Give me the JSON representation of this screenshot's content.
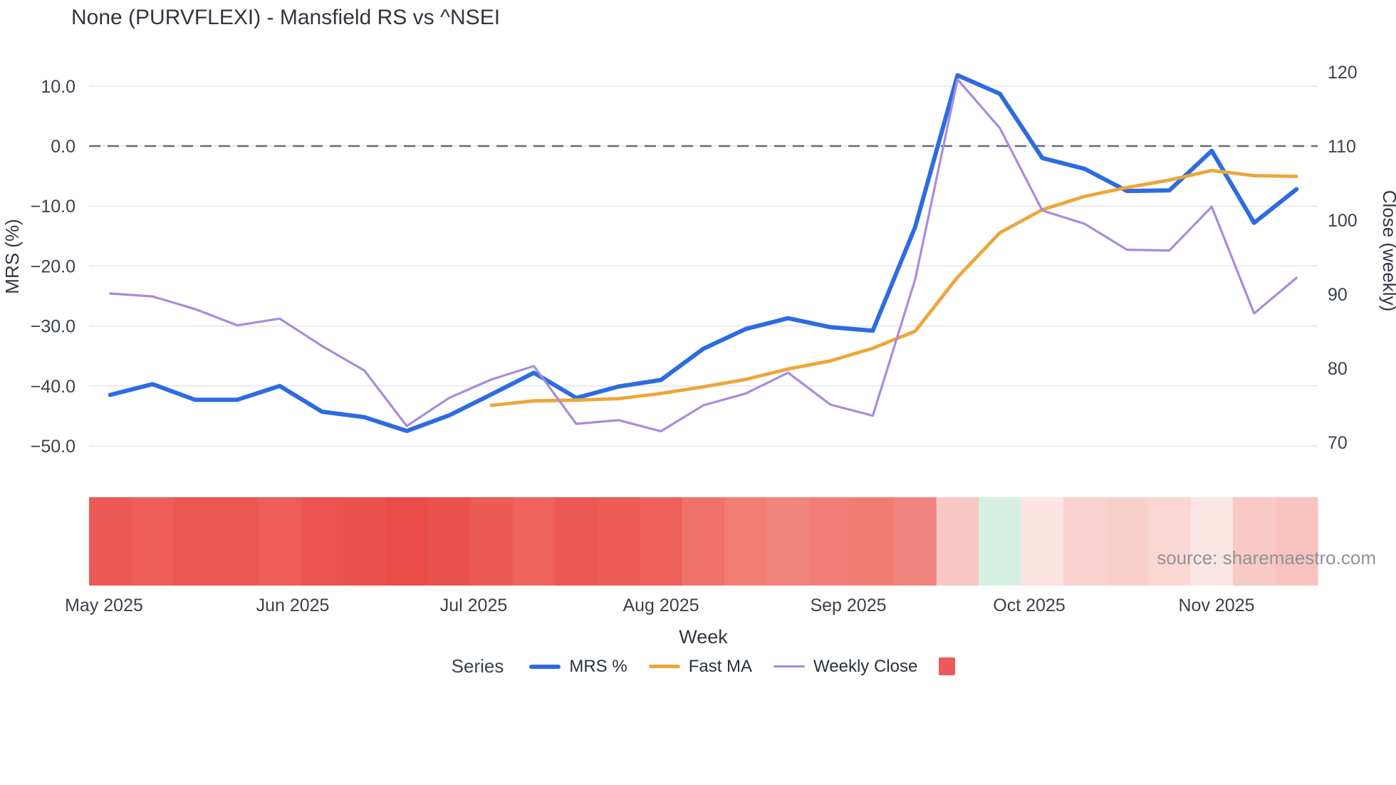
{
  "title": "None (PURVFLEXI) - Mansfield RS vs ^NSEI",
  "source_note": "source: sharemaestro.com",
  "colors": {
    "mrs_line": "#2d6ce0",
    "fast_ma_line": "#eda63b",
    "weekly_close_line": "#a98bdc",
    "zero_dash_line": "#646b76",
    "gridline": "#e9ebf0",
    "tick_text": "#3b414b",
    "title_text": "#31363f",
    "source_text": "#8e939b",
    "legend_band_swatch": "#ec5a5c"
  },
  "legend": {
    "label": "Series",
    "items": [
      {
        "label": "MRS %",
        "type": "line",
        "color": "#2d6ce0"
      },
      {
        "label": "Fast MA",
        "type": "line",
        "color": "#eda63b"
      },
      {
        "label": "Weekly Close",
        "type": "line",
        "color": "#a98bdc"
      },
      {
        "label": "",
        "type": "square",
        "color": "#ec5a5c"
      }
    ]
  },
  "chart_data": {
    "type": "line",
    "title": "None (PURVFLEXI) - Mansfield RS vs ^NSEI",
    "xlabel": "Week",
    "ylabel_left": "MRS (%)",
    "ylabel_right": "Close (weekly)",
    "x_tick_labels": [
      "May 2025",
      "Jun 2025",
      "Jul 2025",
      "Aug 2025",
      "Sep 2025",
      "Oct 2025",
      "Nov 2025"
    ],
    "left_axis_ticks": [
      "10.0",
      "0.0",
      "−10.0",
      "−20.0",
      "−30.0",
      "−40.0",
      "−50.0"
    ],
    "left_axis_tick_values": [
      10,
      0,
      -10,
      -20,
      -30,
      -40,
      -50
    ],
    "right_axis_ticks": [
      "120",
      "110",
      "100",
      "90",
      "80",
      "70"
    ],
    "right_axis_tick_values": [
      120,
      110,
      100,
      90,
      80,
      70
    ],
    "ylim_left": [
      -54,
      15
    ],
    "ylim_right": [
      66,
      122.5
    ],
    "grid": "horizontal-only",
    "zero_reference_line": 0,
    "legend_position": "bottom-center",
    "weeks": [
      "2025-05-02",
      "2025-05-09",
      "2025-05-16",
      "2025-05-23",
      "2025-05-30",
      "2025-06-06",
      "2025-06-13",
      "2025-06-20",
      "2025-06-27",
      "2025-07-04",
      "2025-07-11",
      "2025-07-18",
      "2025-07-25",
      "2025-08-01",
      "2025-08-08",
      "2025-08-15",
      "2025-08-22",
      "2025-08-29",
      "2025-09-05",
      "2025-09-12",
      "2025-09-19",
      "2025-09-26",
      "2025-10-03",
      "2025-10-10",
      "2025-10-17",
      "2025-10-24",
      "2025-10-31",
      "2025-11-07",
      "2025-11-14"
    ],
    "series": [
      {
        "name": "MRS %",
        "axis": "left",
        "values": [
          -41.5,
          -39.7,
          -42.3,
          -42.3,
          -40.0,
          -44.3,
          -45.2,
          -47.5,
          -44.9,
          -41.4,
          -37.8,
          -42.0,
          -40.1,
          -39.0,
          -33.8,
          -30.5,
          -28.7,
          -30.2,
          -30.8,
          -13.5,
          11.8,
          8.7,
          -2.0,
          -3.8,
          -7.5,
          -7.4,
          -0.8,
          -12.8,
          -7.2
        ]
      },
      {
        "name": "Fast MA",
        "axis": "right",
        "values": [
          null,
          null,
          null,
          null,
          null,
          null,
          null,
          null,
          null,
          75.0,
          75.6,
          75.7,
          75.9,
          76.6,
          77.5,
          78.5,
          79.9,
          81.0,
          82.7,
          85.0,
          92.3,
          98.3,
          101.4,
          103.2,
          104.4,
          105.4,
          106.7,
          106.0,
          105.9
        ]
      },
      {
        "name": "Weekly Close",
        "axis": "right",
        "values": [
          90.1,
          89.7,
          88.0,
          85.8,
          86.7,
          83.0,
          79.7,
          72.2,
          76.0,
          78.5,
          80.3,
          72.5,
          73.0,
          71.5,
          75.0,
          76.6,
          79.4,
          75.1,
          73.6,
          92.0,
          119.0,
          112.4,
          101.3,
          99.5,
          96.0,
          95.9,
          101.8,
          87.4,
          92.2
        ]
      }
    ],
    "band": {
      "description": "weekly heat band under plot, one cell per week",
      "colors": [
        "#ed5a55",
        "#ee5f59",
        "#ec5752",
        "#ec5752",
        "#ee5d57",
        "#eb5450",
        "#ea514d",
        "#e94b47",
        "#ea524e",
        "#ed5b55",
        "#ef655e",
        "#ec5853",
        "#ee5c56",
        "#ee615a",
        "#f0736b",
        "#f17d75",
        "#f2857c",
        "#f17e76",
        "#f17c74",
        "#f0867f",
        "#f8c9c4",
        "#d8f0e3",
        "#fce4e2",
        "#f9d2cf",
        "#f9cfca",
        "#fbd7d4",
        "#fce6e4",
        "#f9cac5",
        "#f8c3be"
      ]
    }
  }
}
